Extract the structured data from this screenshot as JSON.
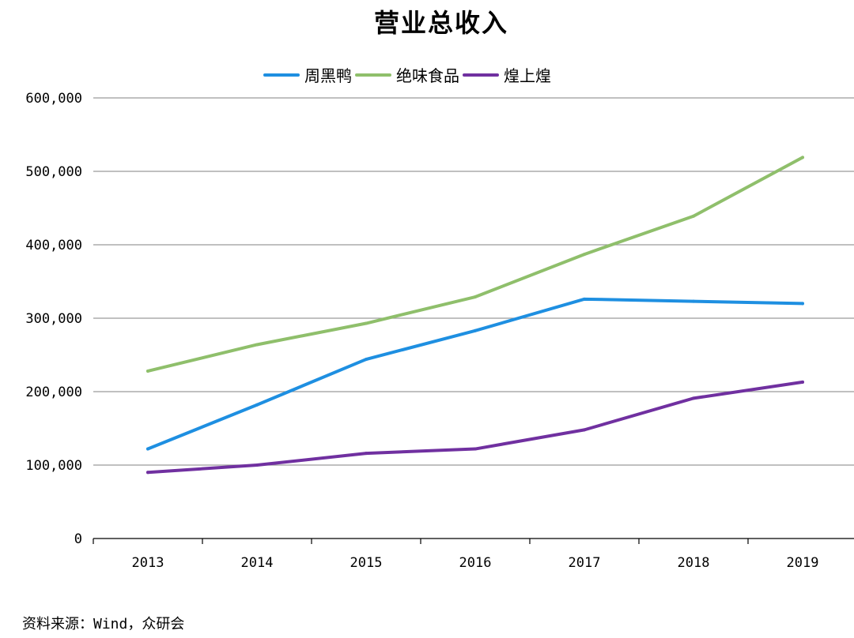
{
  "chart_data": {
    "type": "line",
    "title": "营业总收入",
    "categories": [
      "2013",
      "2014",
      "2015",
      "2016",
      "2017",
      "2018",
      "2019"
    ],
    "series": [
      {
        "name": "周黑鸭",
        "color": "#1e8fe1",
        "values": [
          122000,
          182000,
          244000,
          283000,
          326000,
          323000,
          320000
        ]
      },
      {
        "name": "绝味食品",
        "color": "#8fbf6b",
        "values": [
          228000,
          264000,
          293000,
          329000,
          387000,
          439000,
          519000
        ]
      },
      {
        "name": "煌上煌",
        "color": "#7030a0",
        "values": [
          90000,
          100000,
          116000,
          122000,
          148000,
          191000,
          213000
        ]
      }
    ],
    "yticks": [
      "0",
      "100,000",
      "200,000",
      "300,000",
      "400,000",
      "500,000",
      "600,000"
    ],
    "ylim": [
      0,
      600000
    ],
    "grid": true,
    "legend_position": "top-center"
  },
  "source_note": "资料来源：Wind，众研会"
}
